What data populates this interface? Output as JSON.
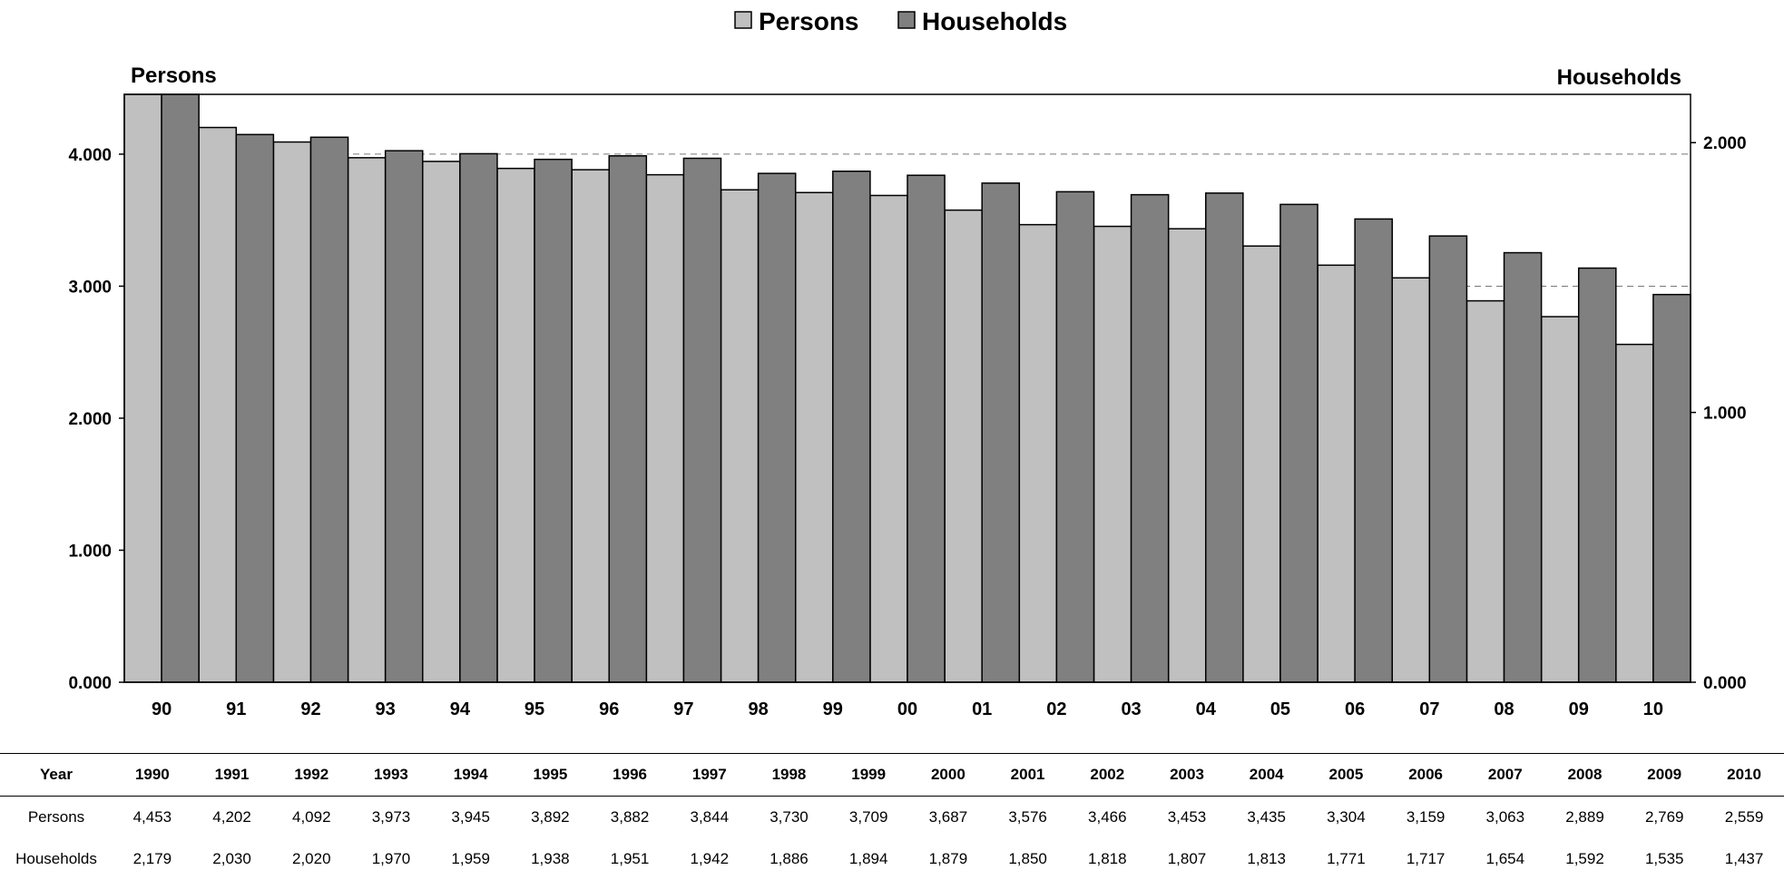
{
  "chart_data": {
    "type": "bar",
    "title": "",
    "legend": {
      "placement": "top-center",
      "entries": [
        "Persons",
        "Households"
      ]
    },
    "categories": [
      "90",
      "91",
      "92",
      "93",
      "94",
      "95",
      "96",
      "97",
      "98",
      "99",
      "00",
      "01",
      "02",
      "03",
      "04",
      "05",
      "06",
      "07",
      "08",
      "09",
      "10"
    ],
    "series": [
      {
        "name": "Persons",
        "axis": "left",
        "color": "#c0c0c0",
        "values": [
          4.453,
          4.202,
          4.092,
          3.973,
          3.945,
          3.892,
          3.882,
          3.844,
          3.73,
          3.709,
          3.687,
          3.576,
          3.466,
          3.453,
          3.435,
          3.304,
          3.159,
          3.063,
          2.889,
          2.769,
          2.559
        ]
      },
      {
        "name": "Households",
        "axis": "right",
        "color": "#808080",
        "values": [
          2.179,
          2.03,
          2.02,
          1.97,
          1.959,
          1.938,
          1.951,
          1.942,
          1.886,
          1.894,
          1.879,
          1.85,
          1.818,
          1.807,
          1.813,
          1.771,
          1.717,
          1.654,
          1.592,
          1.535,
          1.437
        ]
      }
    ],
    "left_axis": {
      "label": "Persons",
      "ylim": [
        0,
        4.453
      ],
      "ticks": [
        "0.000",
        "1.000",
        "2.000",
        "3.000",
        "4.000"
      ]
    },
    "right_axis": {
      "label": "Households",
      "ylim": [
        0,
        2.179
      ],
      "ticks": [
        "0.000",
        "1.000",
        "2.000"
      ]
    },
    "gridlines": {
      "style": "dashed",
      "values_left": [
        3,
        4
      ]
    }
  },
  "table": {
    "header_label": "Year",
    "years": [
      "1990",
      "1991",
      "1992",
      "1993",
      "1994",
      "1995",
      "1996",
      "1997",
      "1998",
      "1999",
      "2000",
      "2001",
      "2002",
      "2003",
      "2004",
      "2005",
      "2006",
      "2007",
      "2008",
      "2009",
      "2010"
    ],
    "rows": [
      {
        "label": "Persons",
        "values": [
          "4,453",
          "4,202",
          "4,092",
          "3,973",
          "3,945",
          "3,892",
          "3,882",
          "3,844",
          "3,730",
          "3,709",
          "3,687",
          "3,576",
          "3,466",
          "3,453",
          "3,435",
          "3,304",
          "3,159",
          "3,063",
          "2,889",
          "2,769",
          "2,559"
        ]
      },
      {
        "label": "Households",
        "values": [
          "2,179",
          "2,030",
          "2,020",
          "1,970",
          "1,959",
          "1,938",
          "1,951",
          "1,942",
          "1,886",
          "1,894",
          "1,879",
          "1,850",
          "1,818",
          "1,807",
          "1,813",
          "1,771",
          "1,717",
          "1,654",
          "1,592",
          "1,535",
          "1,437"
        ]
      }
    ]
  }
}
